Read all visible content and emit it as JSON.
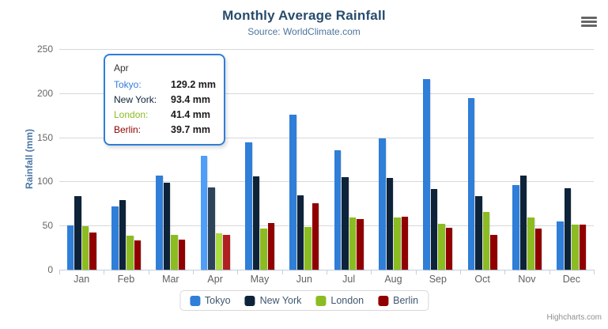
{
  "header": {
    "title": "Monthly Average Rainfall",
    "subtitle": "Source: WorldClimate.com"
  },
  "chart_data": {
    "type": "bar",
    "title": "Monthly Average Rainfall",
    "subtitle": "Source: WorldClimate.com",
    "categories": [
      "Jan",
      "Feb",
      "Mar",
      "Apr",
      "May",
      "Jun",
      "Jul",
      "Aug",
      "Sep",
      "Oct",
      "Nov",
      "Dec"
    ],
    "series": [
      {
        "name": "Tokyo",
        "color": "#2f7ed8",
        "hover_color": "#4f9ef8",
        "values": [
          49.9,
          71.5,
          106.4,
          129.2,
          144.0,
          176.0,
          135.6,
          148.5,
          216.4,
          194.1,
          95.6,
          54.4
        ]
      },
      {
        "name": "New York",
        "color": "#0d233a",
        "hover_color": "#2d435a",
        "values": [
          83.6,
          78.8,
          98.5,
          93.4,
          106.0,
          84.5,
          105.0,
          104.3,
          91.2,
          83.5,
          106.6,
          92.3
        ]
      },
      {
        "name": "London",
        "color": "#8bbc21",
        "hover_color": "#abdc41",
        "values": [
          48.9,
          38.8,
          39.3,
          41.4,
          47.0,
          48.3,
          59.0,
          59.6,
          52.4,
          65.2,
          59.3,
          51.2
        ]
      },
      {
        "name": "Berlin",
        "color": "#910000",
        "hover_color": "#b12020",
        "values": [
          42.4,
          33.2,
          34.5,
          39.7,
          52.6,
          75.5,
          57.4,
          60.4,
          47.6,
          39.1,
          46.8,
          51.1
        ]
      }
    ],
    "xlabel": "",
    "ylabel": "Rainfall (mm)",
    "ylim": [
      0,
      250
    ],
    "ytick_step": 50,
    "ytick_labels": [
      "0",
      "50",
      "100",
      "150",
      "200",
      "250"
    ],
    "grid": true,
    "legend_position": "bottom-center",
    "hovered_category": "Apr",
    "hovered_category_index": 3,
    "colors": {
      "gridline": "#d8d8d8",
      "axis_line": "#c0d0e0",
      "tick": "#c0d0e0",
      "y_label": "#666666",
      "x_label": "#606060",
      "axis_title": "#4a76a5",
      "title": "#274b6d",
      "subtitle": "#4d759e"
    }
  },
  "tooltip": {
    "category": "Apr",
    "border_color": "#2f7ed8",
    "rows": [
      {
        "label": "Tokyo:",
        "value": "129.2 mm",
        "color": "#2f7ed8"
      },
      {
        "label": "New York:",
        "value": "93.4 mm",
        "color": "#0d233a"
      },
      {
        "label": "London:",
        "value": "41.4 mm",
        "color": "#8bbc21"
      },
      {
        "label": "Berlin:",
        "value": "39.7 mm",
        "color": "#910000"
      }
    ]
  },
  "legend": {
    "items": [
      {
        "label": "Tokyo",
        "color": "#2f7ed8"
      },
      {
        "label": "New York",
        "color": "#0d233a"
      },
      {
        "label": "London",
        "color": "#8bbc21"
      },
      {
        "label": "Berlin",
        "color": "#910000"
      }
    ]
  },
  "credits": {
    "label": "Highcharts.com"
  },
  "icons": {
    "export_menu": "hamburger-icon"
  }
}
